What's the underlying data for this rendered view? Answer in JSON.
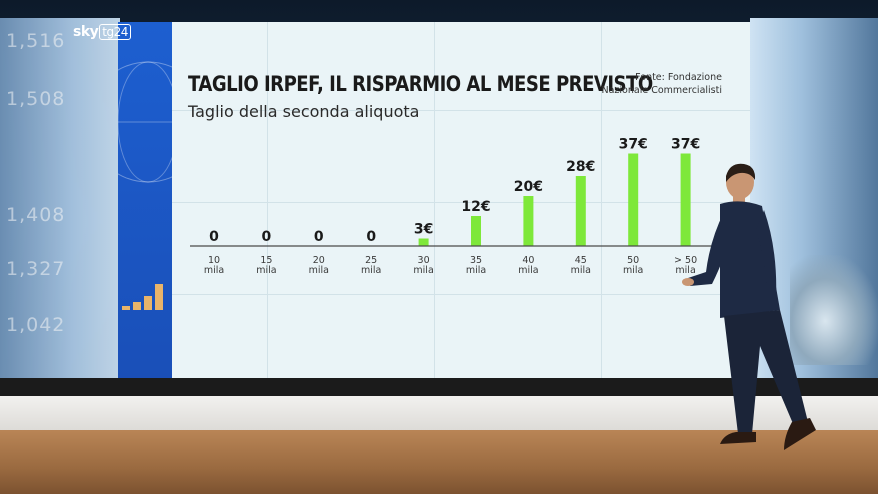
{
  "broadcast": {
    "logo_main": "sky",
    "logo_sub": "tg24",
    "wall_tickers": [
      "1,516",
      "1,508",
      "1,408",
      "1,327",
      "1,042"
    ]
  },
  "chart": {
    "title": "TAGLIO IRPEF, IL RISPARMIO AL MESE PREVISTO",
    "subtitle": "Taglio della seconda aliquota",
    "source_line1": "Fonte: Fondazione",
    "source_line2": "Nazionale Commercialisti"
  },
  "chart_data": {
    "type": "bar",
    "title": "TAGLIO IRPEF, IL RISPARMIO AL MESE PREVISTO",
    "subtitle": "Taglio della seconda aliquota",
    "xlabel": "",
    "ylabel": "",
    "categories": [
      [
        "10",
        "mila"
      ],
      [
        "15",
        "mila"
      ],
      [
        "20",
        "mila"
      ],
      [
        "25",
        "mila"
      ],
      [
        "30",
        "mila"
      ],
      [
        "35",
        "mila"
      ],
      [
        "40",
        "mila"
      ],
      [
        "45",
        "mila"
      ],
      [
        "50",
        "mila"
      ],
      [
        "> 50",
        "mila"
      ]
    ],
    "values": [
      0,
      0,
      0,
      0,
      3,
      12,
      20,
      28,
      37,
      37
    ],
    "value_labels": [
      "0",
      "0",
      "0",
      "0",
      "3€",
      "12€",
      "20€",
      "28€",
      "37€",
      "37€"
    ],
    "bar_color": "#7ee83a",
    "ylim": [
      0,
      40
    ],
    "grid": false,
    "legend": "none"
  }
}
